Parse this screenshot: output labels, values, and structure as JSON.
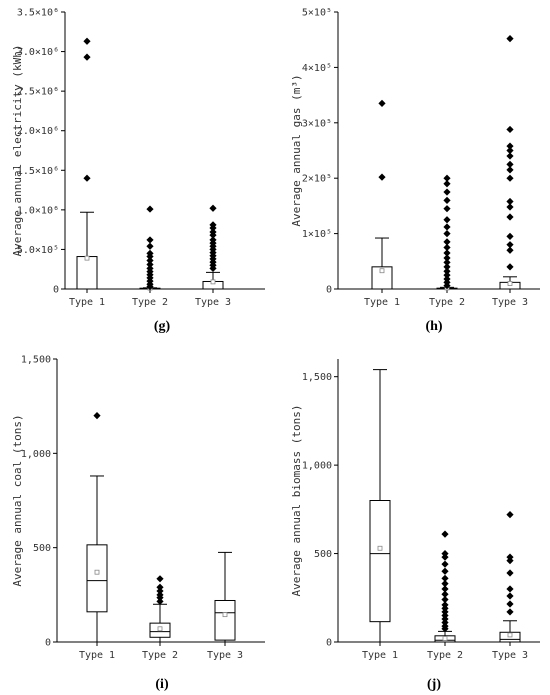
{
  "chart_data": [
    {
      "type": "box",
      "panel_label": "(g)",
      "ylabel": "Average annual electricity (kWh)",
      "ylim": [
        0,
        3500000
      ],
      "yticks": [
        0,
        500000,
        1000000,
        1500000,
        2000000,
        2500000,
        3000000,
        3500000
      ],
      "ytick_labels": [
        "0",
        "5.0×10⁵",
        "1.0×10⁶",
        "1.5×10⁶",
        "2.0×10⁶",
        "2.5×10⁶",
        "3.0×10⁶",
        "3.5×10⁶"
      ],
      "categories": [
        "Type 1",
        "Type 2",
        "Type 3"
      ],
      "boxes": [
        {
          "min": 0,
          "q1": 0,
          "median": 0,
          "q3": 410000,
          "max": 970000,
          "mean": 390000,
          "outliers": [
            1400000,
            2930000,
            3130000
          ]
        },
        {
          "min": 0,
          "q1": 0,
          "median": 0,
          "q3": 10000,
          "max": 15000,
          "mean": 12000,
          "outliers": [
            30000,
            60000,
            100000,
            140000,
            180000,
            220000,
            260000,
            310000,
            360000,
            410000,
            450000,
            540000,
            620000,
            1010000
          ]
        },
        {
          "min": 0,
          "q1": 0,
          "median": 0,
          "q3": 95000,
          "max": 210000,
          "mean": 90000,
          "outliers": [
            260000,
            300000,
            340000,
            380000,
            420000,
            460000,
            500000,
            540000,
            580000,
            620000,
            680000,
            720000,
            770000,
            810000,
            1020000
          ]
        }
      ]
    },
    {
      "type": "box",
      "panel_label": "(h)",
      "ylabel": "Average annual gas (m³)",
      "ylim": [
        0,
        500000
      ],
      "yticks": [
        0,
        100000,
        200000,
        300000,
        400000,
        500000
      ],
      "ytick_labels": [
        "0",
        "1×10⁵",
        "2×10⁵",
        "3×10⁵",
        "4×10⁵",
        "5×10⁵"
      ],
      "categories": [
        "Type 1",
        "Type 2",
        "Type 3"
      ],
      "boxes": [
        {
          "min": 0,
          "q1": 0,
          "median": 0,
          "q3": 40000,
          "max": 92000,
          "mean": 33000,
          "outliers": [
            202000,
            335000
          ]
        },
        {
          "min": 0,
          "q1": 0,
          "median": 0,
          "q3": 1500,
          "max": 3000,
          "mean": 2000,
          "outliers": [
            6000,
            12000,
            18000,
            25000,
            32000,
            40000,
            48000,
            56000,
            65000,
            75000,
            85000,
            100000,
            112000,
            125000,
            145000,
            160000,
            175000,
            190000,
            200000
          ]
        },
        {
          "min": 0,
          "q1": 0,
          "median": 0,
          "q3": 12000,
          "max": 22000,
          "mean": 10000,
          "outliers": [
            40000,
            70000,
            80000,
            95000,
            130000,
            148000,
            158000,
            200000,
            215000,
            225000,
            240000,
            250000,
            258000,
            288000,
            452000
          ]
        }
      ]
    },
    {
      "type": "box",
      "panel_label": "(i)",
      "ylabel": "Average annual coal (tons)",
      "ylim": [
        0,
        1500
      ],
      "yticks": [
        0,
        500,
        1000,
        1500
      ],
      "ytick_labels": [
        "0",
        "500",
        "1,000",
        "1,500"
      ],
      "categories": [
        "Type 1",
        "Type 2",
        "Type 3"
      ],
      "boxes": [
        {
          "min": 0,
          "q1": 160,
          "median": 325,
          "q3": 515,
          "max": 880,
          "mean": 370,
          "outliers": [
            1200
          ]
        },
        {
          "min": 0,
          "q1": 25,
          "median": 55,
          "q3": 100,
          "max": 200,
          "mean": 70,
          "outliers": [
            215,
            235,
            250,
            270,
            290,
            335
          ]
        },
        {
          "min": 0,
          "q1": 10,
          "median": 155,
          "q3": 220,
          "max": 475,
          "mean": 145,
          "outliers": []
        }
      ]
    },
    {
      "type": "box",
      "panel_label": "(j)",
      "ylabel": "Average annual biomass (tons)",
      "ylim": [
        0,
        1600
      ],
      "yticks": [
        0,
        500,
        1000,
        1500
      ],
      "ytick_labels": [
        "0",
        "500",
        "1,000",
        "1,500"
      ],
      "categories": [
        "Type 1",
        "Type 2",
        "Type 3"
      ],
      "boxes": [
        {
          "min": 0,
          "q1": 115,
          "median": 500,
          "q3": 800,
          "max": 1540,
          "mean": 530,
          "outliers": []
        },
        {
          "min": 0,
          "q1": 0,
          "median": 10,
          "q3": 35,
          "max": 60,
          "mean": 20,
          "outliers": [
            75,
            90,
            110,
            130,
            150,
            170,
            190,
            210,
            240,
            270,
            300,
            330,
            360,
            400,
            440,
            480,
            500,
            610
          ]
        },
        {
          "min": 0,
          "q1": 0,
          "median": 15,
          "q3": 55,
          "max": 120,
          "mean": 40,
          "outliers": [
            170,
            215,
            260,
            300,
            390,
            460,
            480,
            720
          ]
        }
      ]
    }
  ]
}
